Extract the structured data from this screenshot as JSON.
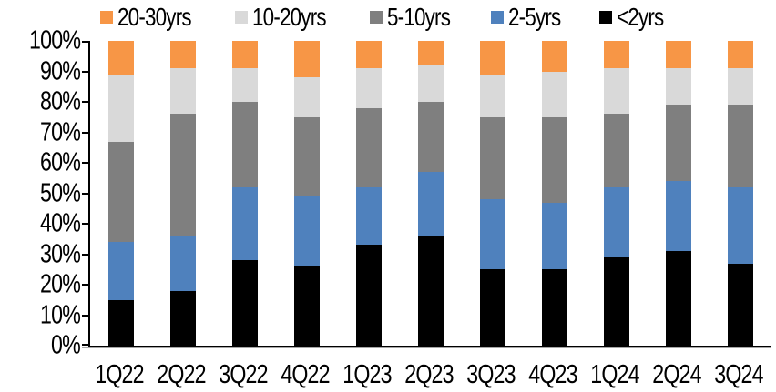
{
  "chart_data": {
    "type": "bar",
    "stacked": true,
    "units": "percent",
    "grid": false,
    "categories": [
      "1Q22",
      "2Q22",
      "3Q22",
      "4Q22",
      "1Q23",
      "2Q23",
      "3Q23",
      "4Q23",
      "1Q24",
      "2Q24",
      "3Q24"
    ],
    "series": [
      {
        "name": "<2yrs",
        "color": "#000000",
        "values": [
          15,
          18,
          28,
          26,
          33,
          36,
          25,
          25,
          29,
          31,
          27
        ]
      },
      {
        "name": "2-5yrs",
        "color": "#4F81BD",
        "values": [
          19,
          18,
          24,
          23,
          19,
          21,
          23,
          22,
          23,
          23,
          25
        ]
      },
      {
        "name": "5-10yrs",
        "color": "#7F7F7F",
        "values": [
          33,
          40,
          28,
          26,
          26,
          23,
          27,
          28,
          24,
          25,
          27
        ]
      },
      {
        "name": "10-20yrs",
        "color": "#D9D9D9",
        "values": [
          22,
          15,
          11,
          13,
          13,
          12,
          14,
          15,
          15,
          12,
          12
        ]
      },
      {
        "name": "20-30yrs",
        "color": "#F79646",
        "values": [
          11,
          9,
          9,
          12,
          9,
          8,
          11,
          10,
          9,
          9,
          9
        ]
      }
    ],
    "y_axis": {
      "min": 0,
      "max": 100,
      "ticks": [
        "0%",
        "10%",
        "20%",
        "30%",
        "40%",
        "50%",
        "60%",
        "70%",
        "80%",
        "90%",
        "100%"
      ]
    },
    "legend": {
      "position": "top",
      "order_left_to_right": [
        "20-30yrs",
        "10-20yrs",
        "5-10yrs",
        "2-5yrs",
        "<2yrs"
      ]
    }
  }
}
